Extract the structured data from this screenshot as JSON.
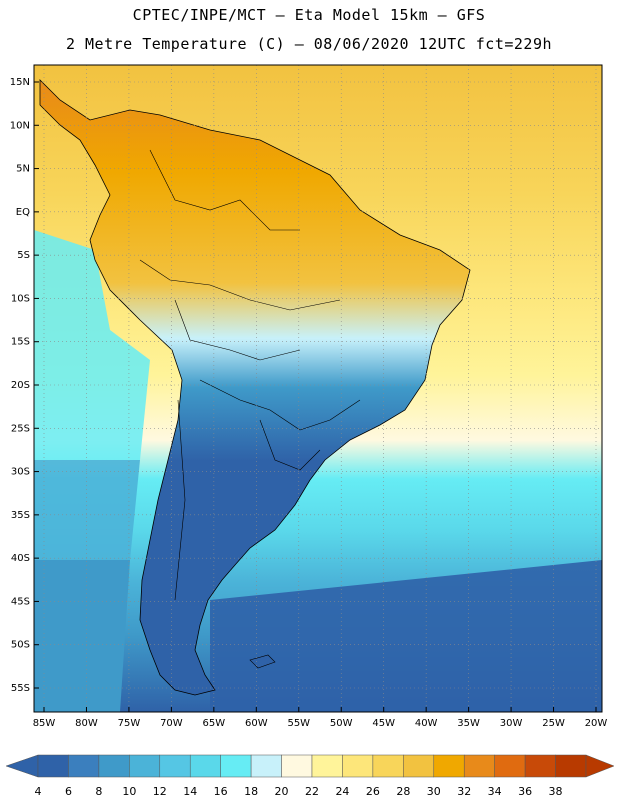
{
  "header": {
    "line1": "CPTEC/INPE/MCT –  Eta Model 15km – GFS",
    "line2": "2 Metre Temperature (C) – 08/06/2020 12UTC fct=229h"
  },
  "map": {
    "lat_labels": [
      "15N",
      "10N",
      "5N",
      "EQ",
      "5S",
      "10S",
      "15S",
      "20S",
      "25S",
      "30S",
      "35S",
      "40S",
      "45S",
      "50S",
      "55S"
    ],
    "lon_labels": [
      "85W",
      "80W",
      "75W",
      "70W",
      "65W",
      "60W",
      "55W",
      "50W",
      "45W",
      "40W",
      "35W",
      "30W",
      "25W",
      "20W"
    ]
  },
  "colorbar": {
    "values": [
      "4",
      "6",
      "8",
      "10",
      "12",
      "14",
      "16",
      "18",
      "20",
      "22",
      "24",
      "26",
      "28",
      "30",
      "32",
      "34",
      "36",
      "38"
    ],
    "colors": [
      "#2f62a8",
      "#3b7fbe",
      "#3f9ac9",
      "#4bb3d8",
      "#55c6e4",
      "#5ad8ea",
      "#66ecf4",
      "#c8f1fa",
      "#fff9e0",
      "#fff49a",
      "#fde67a",
      "#f8d55a",
      "#f2c240",
      "#f0a800",
      "#e88a1a",
      "#e06b10",
      "#c84a08",
      "#b83a00"
    ]
  }
}
